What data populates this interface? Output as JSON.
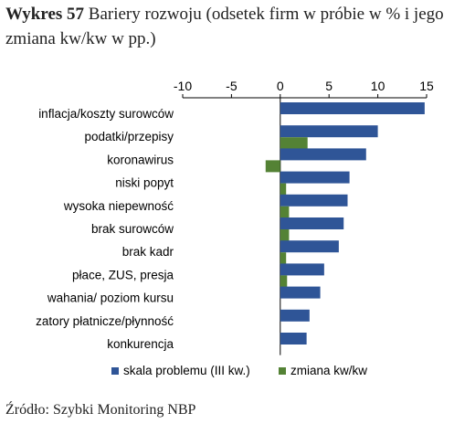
{
  "title": {
    "bold_part": "Wykres 57",
    "rest": "Bariery rozwoju (odsetek firm w próbie w % i jego zmiana kw/kw w pp.)"
  },
  "source": "Źródło: Szybki Monitoring NBP",
  "chart_data": {
    "type": "bar",
    "orientation": "horizontal",
    "title": "Wykres 57 Bariery rozwoju (odsetek firm w próbie w % i jego zmiana kw/kw w pp.)",
    "categories": [
      "inflacja/koszty surowców",
      "podatki/przepisy",
      "koronawirus",
      "niski popyt",
      "wysoka niepewność",
      "brak surowców",
      "brak kadr",
      "płace, ZUS, presja",
      "wahania/ poziom kursu",
      "zatory płatnicze/płynność",
      "konkurencja"
    ],
    "series": [
      {
        "name": "skala problemu (III kw.)",
        "color": "#2F5597",
        "values": [
          14.8,
          10.0,
          8.8,
          7.1,
          6.9,
          6.5,
          6.0,
          4.5,
          4.1,
          3.0,
          2.7
        ]
      },
      {
        "name": "zmiana kw/kw",
        "color": "#548235",
        "values": [
          0.0,
          2.8,
          -1.5,
          0.6,
          0.9,
          0.9,
          0.6,
          0.7,
          0.0,
          0.0,
          0.0
        ]
      }
    ],
    "xlim": [
      -10,
      15
    ],
    "xticks": [
      -10,
      -5,
      0,
      5,
      10,
      15
    ],
    "axis_position": "top",
    "legend_position": "bottom",
    "grid": false
  }
}
